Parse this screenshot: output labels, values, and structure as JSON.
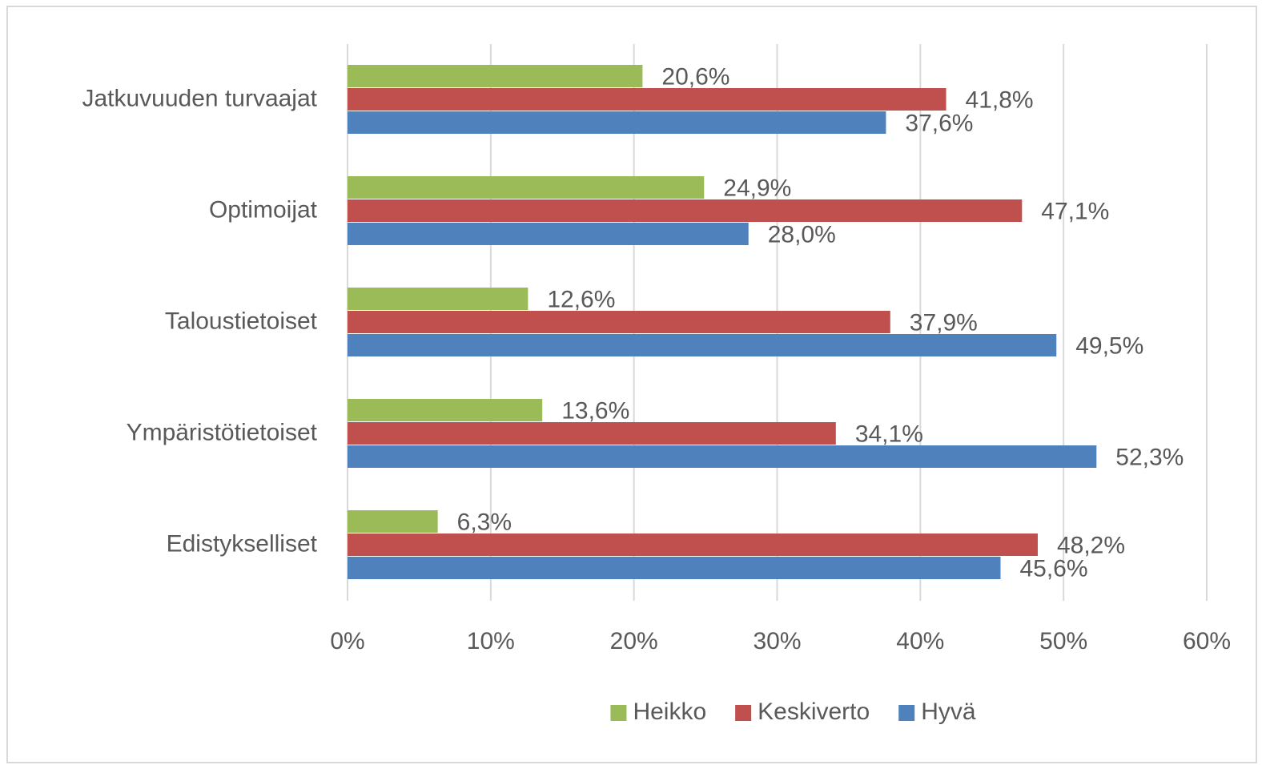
{
  "chart_data": {
    "type": "hbar",
    "categories": [
      "Jatkuvuuden turvaajat",
      "Optimoijat",
      "Taloustietoiset",
      "Ympäristötietoiset",
      "Edistykselliset"
    ],
    "series": [
      {
        "name": "Heikko",
        "color": "#9bbb59",
        "values": [
          20.6,
          24.9,
          12.6,
          13.6,
          6.3
        ],
        "value_labels": [
          "20,6%",
          "24,9%",
          "12,6%",
          "13,6%",
          "6,3%"
        ]
      },
      {
        "name": "Keskiverto",
        "color": "#c0504d",
        "values": [
          41.8,
          47.1,
          37.9,
          34.1,
          48.2
        ],
        "value_labels": [
          "41,8%",
          "47,1%",
          "37,9%",
          "34,1%",
          "48,2%"
        ]
      },
      {
        "name": "Hyvä",
        "color": "#4f81bd",
        "values": [
          37.6,
          28.0,
          49.5,
          52.3,
          45.6
        ],
        "value_labels": [
          "37,6%",
          "28,0%",
          "49,5%",
          "52,3%",
          "45,6%"
        ]
      }
    ],
    "xlim": [
      0,
      60
    ],
    "xticks": [
      {
        "value": 0,
        "label": "0%"
      },
      {
        "value": 10,
        "label": "10%"
      },
      {
        "value": 20,
        "label": "20%"
      },
      {
        "value": 30,
        "label": "30%"
      },
      {
        "value": 40,
        "label": "40%"
      },
      {
        "value": 50,
        "label": "50%"
      },
      {
        "value": 60,
        "label": "60%"
      }
    ],
    "grid": true,
    "legend": "bottom"
  }
}
